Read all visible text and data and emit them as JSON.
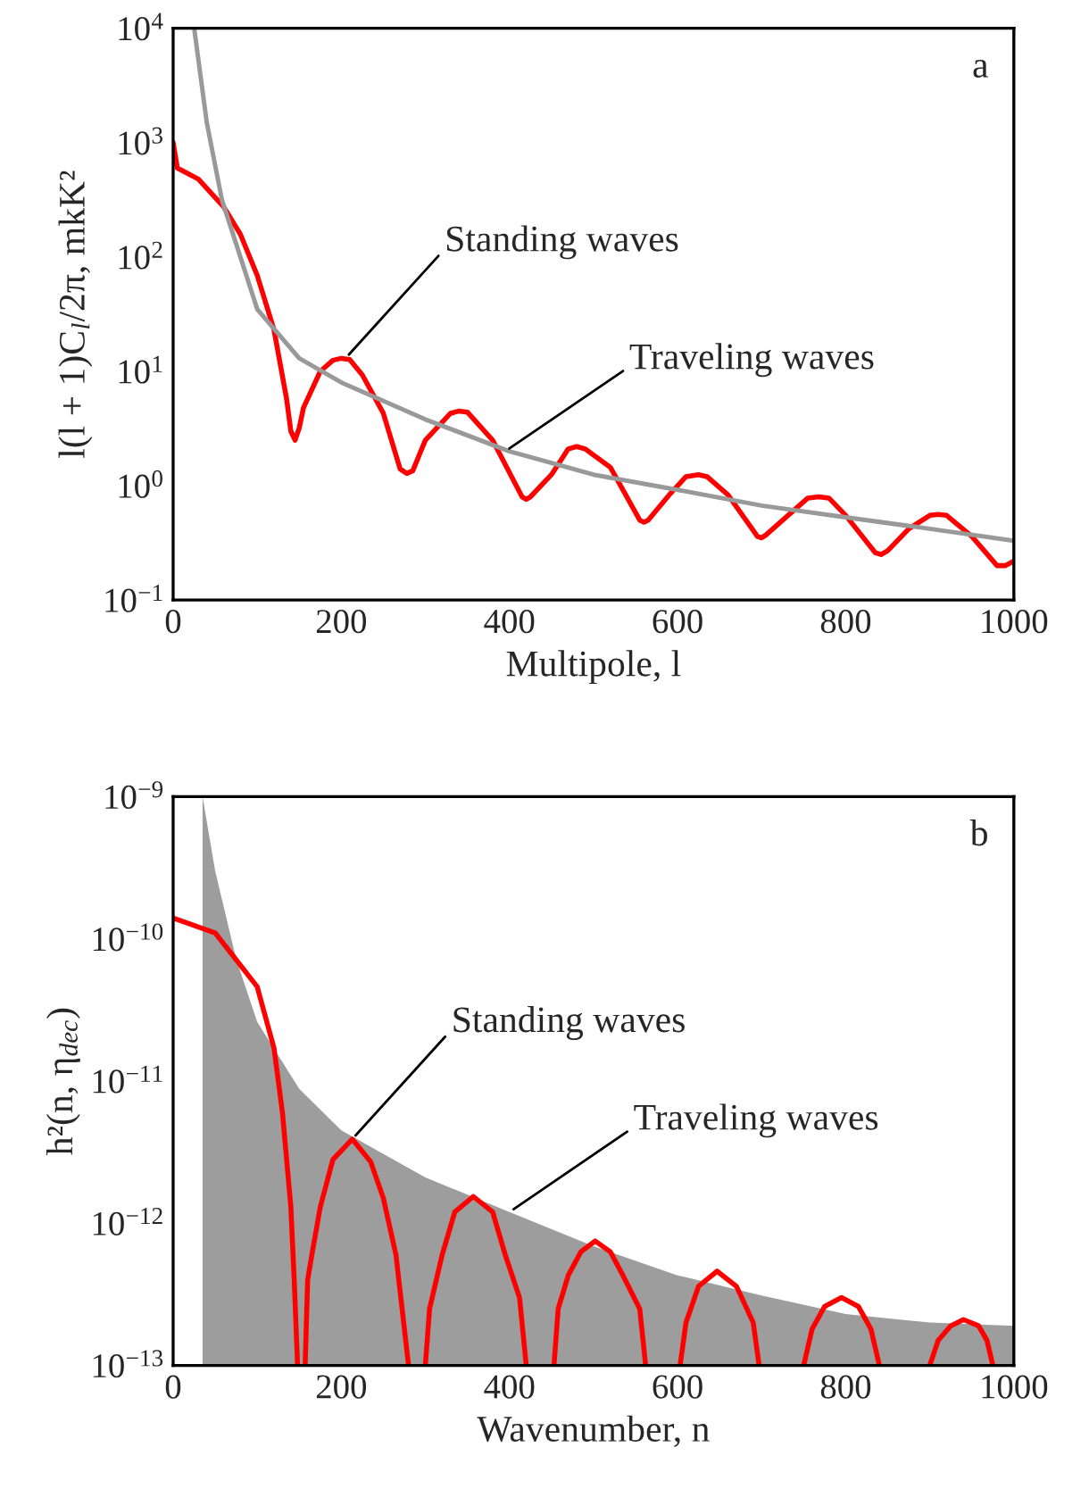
{
  "chart_data": [
    {
      "type": "line",
      "xlabel": "Multipole, l",
      "ylabel": "l(l + 1)C$_{l}$/2π, mkK²",
      "log": "y",
      "xlim": [
        0,
        1000
      ],
      "ylim": [
        0.1,
        10000
      ],
      "xticks": [
        0,
        200,
        400,
        600,
        800,
        1000
      ],
      "yticks": [
        {
          "value": 0.1,
          "label": "10$^{−1}$"
        },
        {
          "value": 1,
          "label": "10$^{0}$"
        },
        {
          "value": 10,
          "label": "10$^{1}$"
        },
        {
          "value": 100,
          "label": "10$^{2}$"
        },
        {
          "value": 1000,
          "label": "10$^{3}$"
        },
        {
          "value": 10000,
          "label": "10$^{4}$"
        }
      ],
      "grid": false,
      "legend": false,
      "series": [
        {
          "color": "#ff0000",
          "x": [
            0,
            5,
            30,
            60,
            80,
            100,
            120,
            135,
            140,
            145,
            150,
            155,
            175,
            190,
            200,
            210,
            225,
            250,
            270,
            278,
            285,
            300,
            330,
            340,
            350,
            380,
            415,
            420,
            425,
            450,
            470,
            480,
            490,
            520,
            555,
            560,
            565,
            590,
            610,
            625,
            635,
            660,
            695,
            700,
            705,
            735,
            755,
            768,
            780,
            800,
            835,
            842,
            850,
            875,
            900,
            910,
            920,
            950,
            980,
            985,
            990,
            1000
          ],
          "values": [
            1000,
            600,
            480,
            275,
            158,
            69,
            23,
            5.7,
            3.0,
            2.5,
            3.2,
            4.8,
            10,
            12.5,
            13,
            12.7,
            9.3,
            4.3,
            1.4,
            1.28,
            1.35,
            2.5,
            4.3,
            4.5,
            4.4,
            2.5,
            0.8,
            0.76,
            0.8,
            1.25,
            2.1,
            2.2,
            2.1,
            1.45,
            0.5,
            0.48,
            0.5,
            0.83,
            1.2,
            1.25,
            1.2,
            0.83,
            0.36,
            0.35,
            0.37,
            0.58,
            0.78,
            0.8,
            0.78,
            0.55,
            0.26,
            0.25,
            0.27,
            0.42,
            0.55,
            0.56,
            0.55,
            0.36,
            0.2,
            0.2,
            0.2,
            0.22
          ]
        },
        {
          "color": "#999999",
          "x": [
            25,
            40,
            58,
            100,
            150,
            200,
            300,
            400,
            500,
            600,
            700,
            800,
            900,
            1000
          ],
          "values": [
            10000,
            1500,
            316,
            35,
            13,
            8,
            3.8,
            2,
            1.25,
            0.92,
            0.67,
            0.53,
            0.42,
            0.33
          ]
        }
      ],
      "annotations": [
        {
          "text": "Standing waves",
          "x": 205,
          "y": 13
        },
        {
          "text": "Traveling waves",
          "x": 395,
          "y": 2
        },
        "a"
      ]
    },
    {
      "type": "line",
      "xlabel": "Wavenumber, n",
      "ylabel": "h²(n, η$_{dec}$)",
      "log": "y",
      "xlim": [
        0,
        1000
      ],
      "ylim": [
        1e-13,
        1e-09
      ],
      "xticks": [
        0,
        200,
        400,
        600,
        800,
        1000
      ],
      "yticks": [
        {
          "value": 1e-13,
          "label": "10$^{−13}$"
        },
        {
          "value": 1e-12,
          "label": "10$^{−12}$"
        },
        {
          "value": 1e-11,
          "label": "10$^{−11}$"
        },
        {
          "value": 1e-10,
          "label": "10$^{−10}$"
        },
        {
          "value": 1e-09,
          "label": "10$^{−9}$"
        }
      ],
      "grid": false,
      "legend": false,
      "series": [
        {
          "type": "area",
          "color": "#8c8c8c",
          "x": [
            35,
            50,
            75,
            100,
            150,
            200,
            300,
            400,
            500,
            600,
            700,
            800,
            900,
            1000
          ],
          "values": [
            1e-09,
            3e-10,
            7.2e-11,
            2.6e-11,
            8.8e-12,
            4.5e-12,
            2.1e-12,
            1.2e-12,
            6.9e-13,
            4.3e-13,
            3.1e-13,
            2.3e-13,
            2e-13,
            1.9e-13
          ]
        },
        {
          "color": "#ff0000",
          "x": [
            0,
            50,
            100,
            120,
            130,
            140,
            144,
            148,
            152,
            157,
            160,
            165,
            175,
            190,
            213,
            235,
            250,
            265,
            280,
            290,
            300,
            305,
            320,
            335,
            357,
            380,
            395,
            412,
            420,
            436,
            453,
            458,
            470,
            485,
            502,
            520,
            535,
            555,
            562,
            583,
            603,
            610,
            625,
            647,
            670,
            690,
            697,
            723,
            750,
            760,
            775,
            795,
            815,
            830,
            840,
            870,
            900,
            910,
            925,
            940,
            958,
            968,
            975
          ],
          "values": [
            1.4e-10,
            1.1e-10,
            4.6e-11,
            1.7e-11,
            6e-12,
            1.3e-12,
            4e-13,
            1e-13,
            null,
            1e-13,
            4e-13,
            6e-13,
            1.3e-12,
            2.8e-12,
            3.9e-12,
            2.7e-12,
            1.5e-12,
            6e-13,
            1e-13,
            null,
            1e-13,
            2.5e-13,
            6e-13,
            1.2e-12,
            1.54e-12,
            1.2e-12,
            6e-13,
            3e-13,
            1e-13,
            null,
            1e-13,
            2.5e-13,
            4.3e-13,
            6.3e-13,
            7.5e-13,
            6.3e-13,
            4.3e-13,
            2.5e-13,
            1e-13,
            null,
            1e-13,
            2e-13,
            3.6e-13,
            4.6e-13,
            3.6e-13,
            2e-13,
            1e-13,
            null,
            1e-13,
            1.8e-13,
            2.6e-13,
            3e-13,
            2.6e-13,
            1.8e-13,
            1e-13,
            null,
            1e-13,
            1.5e-13,
            1.9e-13,
            2.1e-13,
            1.9e-13,
            1.5e-13,
            1e-13
          ]
        }
      ],
      "annotations": [
        {
          "text": "Standing waves",
          "x": 213,
          "y": 3.9e-12
        },
        {
          "text": "Traveling waves",
          "x": 400,
          "y": 1.2e-12
        },
        "b"
      ]
    }
  ]
}
